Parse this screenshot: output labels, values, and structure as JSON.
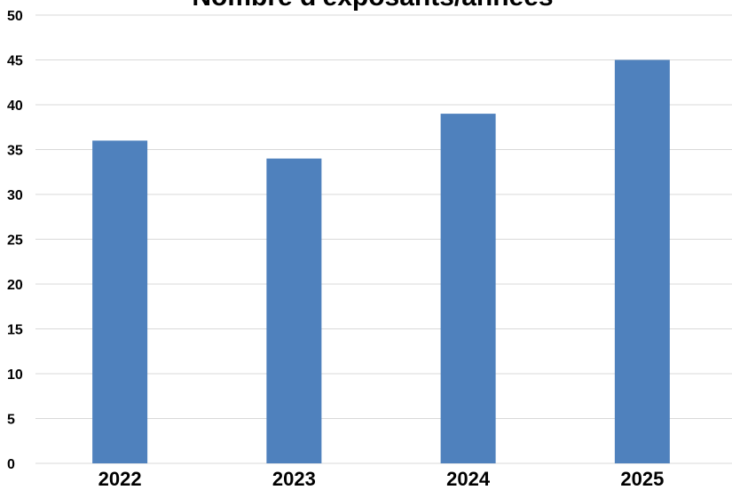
{
  "chart_data": {
    "type": "bar",
    "title": "Nombre d'exposants/années",
    "categories": [
      "2022",
      "2023",
      "2024",
      "2025"
    ],
    "values": [
      36,
      34,
      39,
      45
    ],
    "ylim": [
      0,
      50
    ],
    "yticks": [
      0,
      5,
      10,
      15,
      20,
      25,
      30,
      35,
      40,
      45,
      50
    ],
    "xlabel": "",
    "ylabel": "",
    "grid": true,
    "legend": "none",
    "bar_color": "#4f81bd"
  }
}
